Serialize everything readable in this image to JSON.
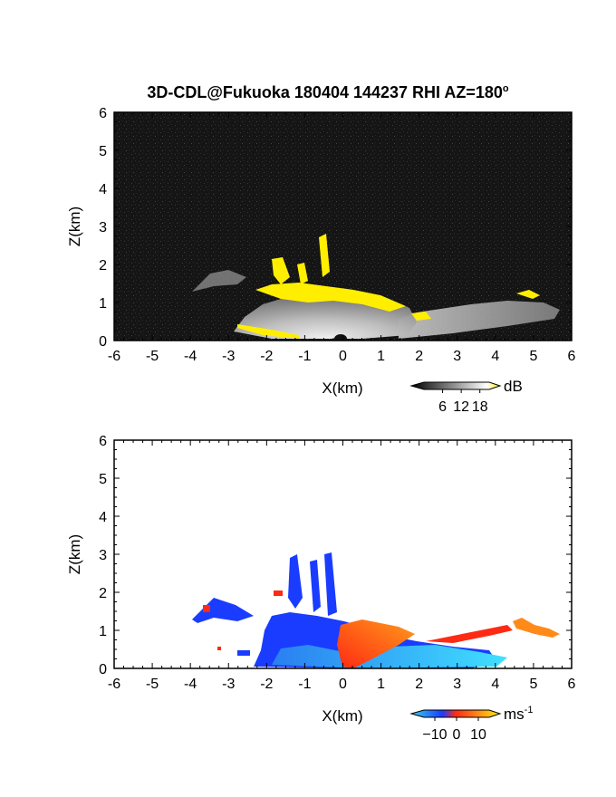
{
  "figure": {
    "title": "3D-CDL@Fukuoka 180404 144237 RHI AZ=180",
    "title_superscript": "o"
  },
  "colors": {
    "background": "#ffffff",
    "reflectivity_field_bg": "#111111",
    "reflectivity_high": "#ffee00",
    "velocity_blue": "#1a3cff",
    "velocity_cyan": "#35d0f0",
    "velocity_red": "#ff2a14",
    "velocity_orange": "#ff8a1a"
  },
  "chart_data": [
    {
      "type": "heatmap",
      "panel": "reflectivity",
      "title": "3D-CDL@Fukuoka 180404 144237 RHI AZ=180o",
      "xlabel": "X(km)",
      "ylabel": "Z(km)",
      "xlim": [
        -6,
        6
      ],
      "ylim": [
        0,
        6
      ],
      "x_ticks": [
        "-6",
        "-5",
        "-4",
        "-3",
        "-2",
        "-1",
        "0",
        "1",
        "2",
        "3",
        "4",
        "5",
        "6"
      ],
      "y_ticks": [
        "0",
        "1",
        "2",
        "3",
        "4",
        "5",
        "6"
      ],
      "colorbar": {
        "unit": "dB",
        "ticks": [
          "6",
          "12",
          "18"
        ],
        "range": [
          0,
          21
        ]
      },
      "regions": [
        {
          "name": "near-range echo",
          "x": [
            -3,
            2
          ],
          "z": [
            0,
            1
          ]
        },
        {
          "name": "plumes",
          "x": [
            -1.8,
            -0.2
          ],
          "z": [
            1,
            3
          ]
        },
        {
          "name": "far echo",
          "x": [
            2,
            5.8
          ],
          "z": [
            0.2,
            1.1
          ]
        }
      ]
    },
    {
      "type": "heatmap",
      "panel": "velocity",
      "xlabel": "X(km)",
      "ylabel": "Z(km)",
      "xlim": [
        -6,
        6
      ],
      "ylim": [
        0,
        6
      ],
      "x_ticks": [
        "-6",
        "-5",
        "-4",
        "-3",
        "-2",
        "-1",
        "0",
        "1",
        "2",
        "3",
        "4",
        "5",
        "6"
      ],
      "y_ticks": [
        "0",
        "1",
        "2",
        "3",
        "4",
        "5",
        "6"
      ],
      "colorbar": {
        "unit": "ms",
        "unit_superscript": "-1",
        "ticks": [
          "−10",
          "0",
          "10"
        ],
        "range": [
          -15,
          15
        ]
      }
    }
  ]
}
